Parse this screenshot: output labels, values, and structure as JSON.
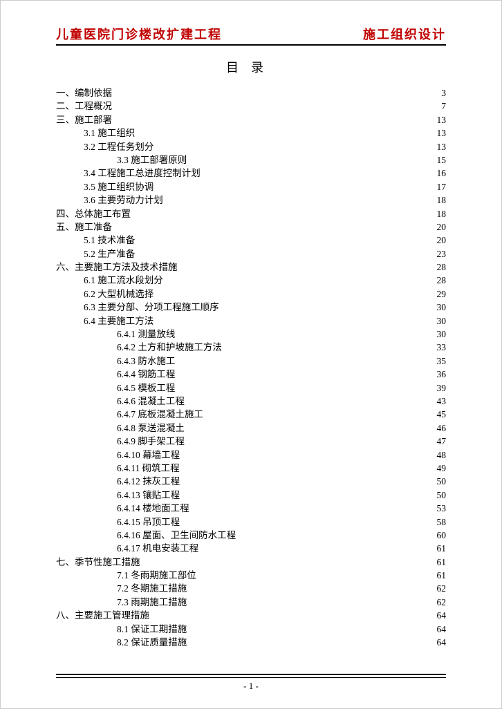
{
  "header": {
    "left": "儿童医院门诊楼改扩建工程",
    "right": "施工组织设计"
  },
  "title": "目录",
  "footer": "- 1 -",
  "colors": {
    "header_text": "#c00000",
    "rule": "#000000",
    "text": "#000000",
    "background": "#ffffff"
  },
  "typography": {
    "body_font": "SimSun",
    "header_font": "KaiTi",
    "body_size_pt": 10.5,
    "title_size_pt": 14
  },
  "toc": [
    {
      "level": 1,
      "label": "一、编制依据",
      "page": "3",
      "leader": "dots"
    },
    {
      "level": 1,
      "label": "二、工程概况",
      "page": "7",
      "leader": "dots"
    },
    {
      "level": 1,
      "label": "三、施工部署",
      "page": "13",
      "leader": "dots"
    },
    {
      "level": 2,
      "label": "3.1 施工组织",
      "page": "13",
      "leader": "solid"
    },
    {
      "level": 2,
      "label": "3.2 工程任务划分",
      "page": "13",
      "leader": "solid"
    },
    {
      "level": 3,
      "label": "3.3 施工部署原则",
      "page": "15",
      "leader": "solid"
    },
    {
      "level": 2,
      "label": "3.4 工程施工总进度控制计划",
      "page": "16",
      "leader": "solid"
    },
    {
      "level": 2,
      "label": "3.5 施工组织协调",
      "page": "17",
      "leader": "solid"
    },
    {
      "level": 2,
      "label": "3.6 主要劳动力计划",
      "page": "18",
      "leader": "solid"
    },
    {
      "level": 1,
      "label": "四、总体施工布置",
      "page": "18",
      "leader": "dots"
    },
    {
      "level": 1,
      "label": "五、施工准备",
      "page": "20",
      "leader": "dots"
    },
    {
      "level": 2,
      "label": "5.1 技术准备",
      "page": "20",
      "leader": "solid"
    },
    {
      "level": 2,
      "label": "5.2 生产准备",
      "page": "23",
      "leader": "solid"
    },
    {
      "level": 1,
      "label": "六、主要施工方法及技术措施",
      "page": "28",
      "leader": "dots"
    },
    {
      "level": 2,
      "label": "6.1 施工流水段划分",
      "page": "28",
      "leader": "solid"
    },
    {
      "level": 2,
      "label": "6.2 大型机械选择",
      "page": "29",
      "leader": "solid"
    },
    {
      "level": 2,
      "label": "6.3 主要分部、分项工程施工顺序",
      "page": "30",
      "leader": "solid"
    },
    {
      "level": 2,
      "label": "6.4 主要施工方法",
      "page": "30",
      "leader": "solid"
    },
    {
      "level": 3,
      "label": "6.4.1 测量放线",
      "page": "30",
      "leader": "solid"
    },
    {
      "level": 3,
      "label": "6.4.2 土方和护坡施工方法",
      "page": "33",
      "leader": "solid"
    },
    {
      "level": 3,
      "label": "6.4.3 防水施工",
      "page": "35",
      "leader": "solid"
    },
    {
      "level": 3,
      "label": "6.4.4 钢筋工程",
      "page": "36",
      "leader": "solid"
    },
    {
      "level": 3,
      "label": "6.4.5 模板工程",
      "page": "39",
      "leader": "solid"
    },
    {
      "level": 3,
      "label": "6.4.6 混凝土工程",
      "page": "43",
      "leader": "solid"
    },
    {
      "level": 3,
      "label": "6.4.7 底板混凝土施工",
      "page": "45",
      "leader": "solid"
    },
    {
      "level": 3,
      "label": "6.4.8 泵送混凝土",
      "page": "46",
      "leader": "solid"
    },
    {
      "level": 3,
      "label": "6.4.9 脚手架工程",
      "page": "47",
      "leader": "solid"
    },
    {
      "level": 3,
      "label": "6.4.10 幕墙工程",
      "page": "48",
      "leader": "solid"
    },
    {
      "level": 3,
      "label": "6.4.11 砌筑工程",
      "page": "49",
      "leader": "solid"
    },
    {
      "level": 3,
      "label": "6.4.12 抹灰工程",
      "page": "50",
      "leader": "solid"
    },
    {
      "level": 3,
      "label": "6.4.13 镶贴工程",
      "page": "50",
      "leader": "solid"
    },
    {
      "level": 3,
      "label": "6.4.14 楼地面工程",
      "page": "53",
      "leader": "solid"
    },
    {
      "level": 3,
      "label": "6.4.15 吊顶工程",
      "page": "58",
      "leader": "solid"
    },
    {
      "level": 3,
      "label": "6.4.16 屋面、卫生间防水工程",
      "page": "60",
      "leader": "solid"
    },
    {
      "level": 3,
      "label": "6.4.17 机电安装工程",
      "page": "61",
      "leader": "solid"
    },
    {
      "level": 1,
      "label": "七、季节性施工措施",
      "page": "61",
      "leader": "dots"
    },
    {
      "level": 3,
      "label": "7.1 冬雨期施工部位",
      "page": "61",
      "leader": "solid"
    },
    {
      "level": 3,
      "label": "7.2 冬期施工措施",
      "page": "62",
      "leader": "solid"
    },
    {
      "level": 3,
      "label": "7.3 雨期施工措施",
      "page": "62",
      "leader": "solid"
    },
    {
      "level": 1,
      "label": "八、主要施工管理措施",
      "page": "64",
      "leader": "dots"
    },
    {
      "level": 3,
      "label": "8.1 保证工期措施",
      "page": "64",
      "leader": "solid"
    },
    {
      "level": 3,
      "label": "8.2 保证质量措施",
      "page": "64",
      "leader": "solid"
    }
  ]
}
